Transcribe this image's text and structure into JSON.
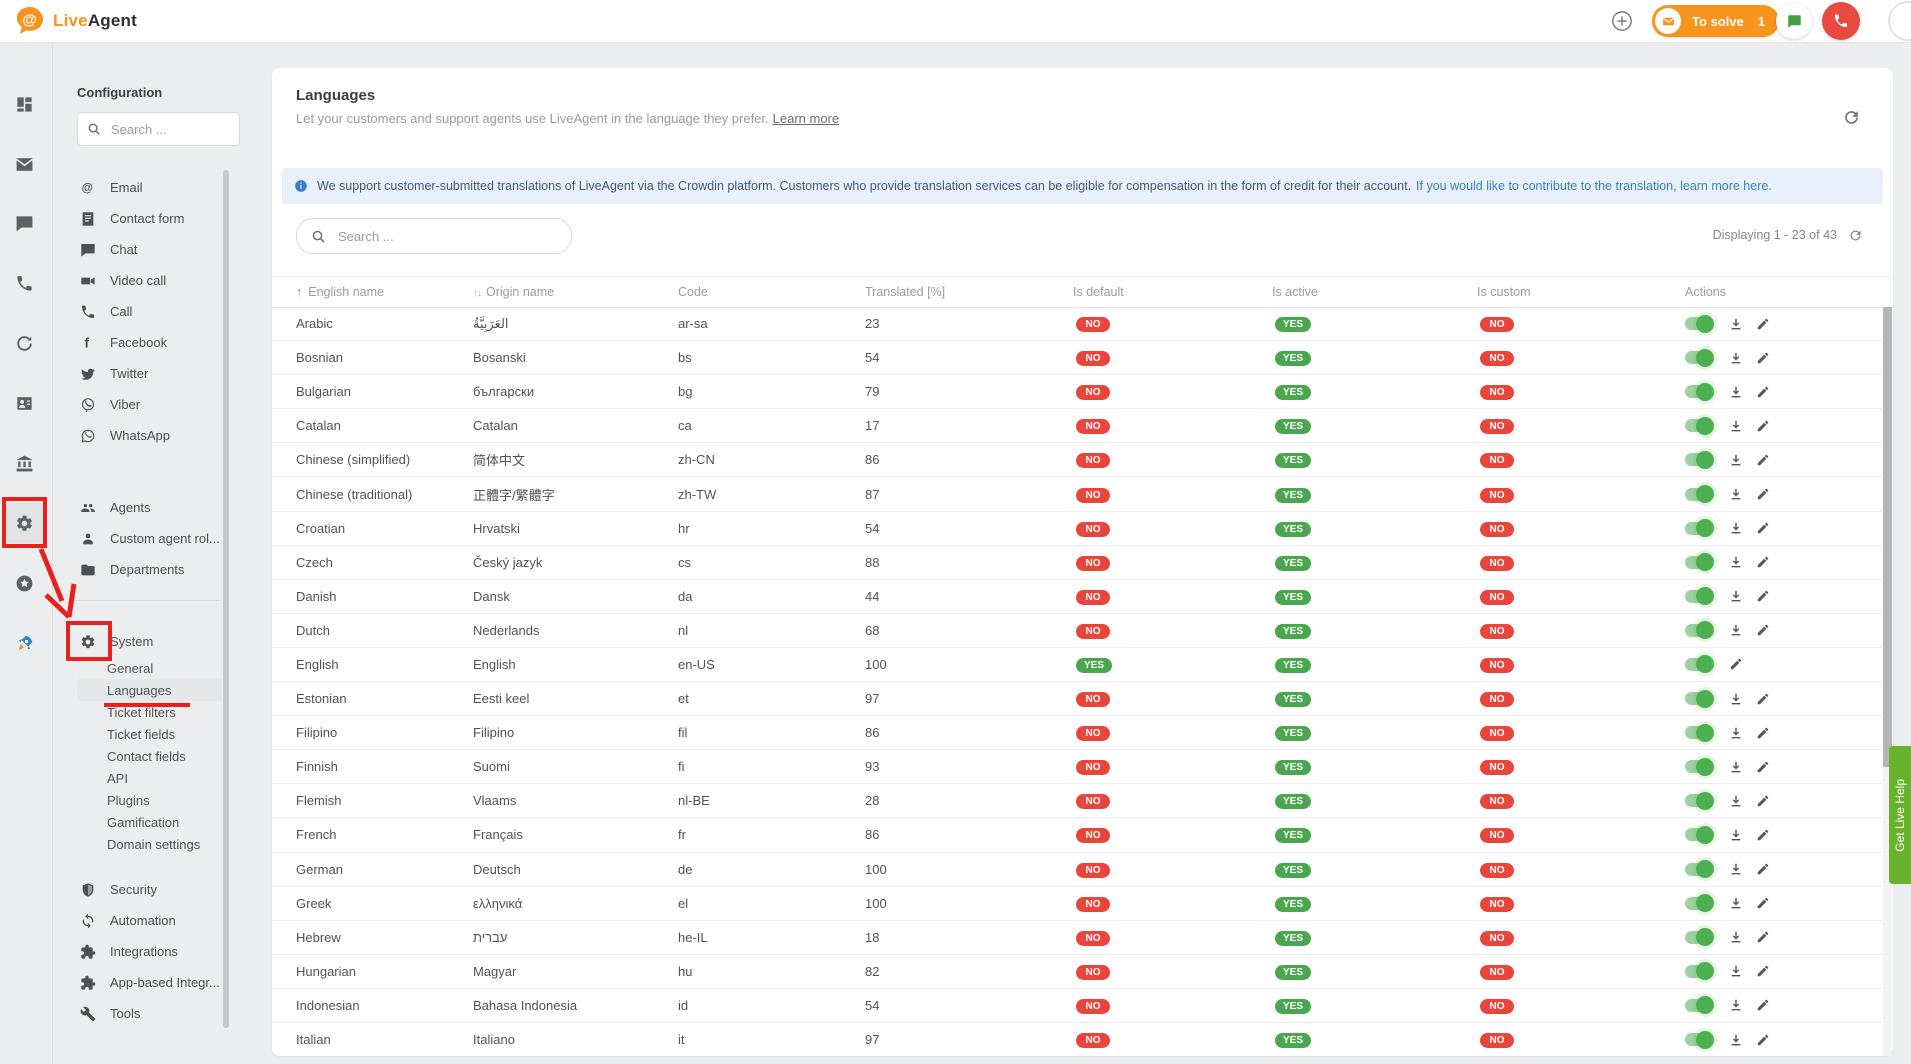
{
  "header": {
    "logo": {
      "live": "Live",
      "agent": "Agent"
    },
    "to_solve": {
      "label": "To solve",
      "count": "1"
    },
    "icons": [
      "plus-circle-icon",
      "envelope-icon",
      "chat-bubble-icon",
      "phone-icon"
    ]
  },
  "rail": {
    "items": [
      {
        "icon": "dashboard",
        "name": "dashboard"
      },
      {
        "icon": "email",
        "name": "email"
      },
      {
        "icon": "chat",
        "name": "chat"
      },
      {
        "icon": "call",
        "name": "calls"
      },
      {
        "icon": "time",
        "name": "time"
      },
      {
        "icon": "contacts",
        "name": "customers"
      },
      {
        "icon": "company",
        "name": "company"
      },
      {
        "icon": "gear",
        "name": "configuration",
        "active": true
      },
      {
        "icon": "badge",
        "name": "achievements"
      },
      {
        "icon": "rocket",
        "name": "getting-started"
      }
    ]
  },
  "sidebar": {
    "title": "Configuration",
    "search_placeholder": "Search ...",
    "channels": [
      {
        "icon": "at",
        "label": "Email"
      },
      {
        "icon": "form",
        "label": "Contact form"
      },
      {
        "icon": "chat",
        "label": "Chat"
      },
      {
        "icon": "video",
        "label": "Video call"
      },
      {
        "icon": "call",
        "label": "Call"
      },
      {
        "icon": "facebook",
        "label": "Facebook"
      },
      {
        "icon": "twitter",
        "label": "Twitter"
      },
      {
        "icon": "viber",
        "label": "Viber"
      },
      {
        "icon": "whatsapp",
        "label": "WhatsApp"
      }
    ],
    "people": [
      {
        "icon": "people",
        "label": "Agents"
      },
      {
        "icon": "person",
        "label": "Custom agent rol..."
      },
      {
        "icon": "folder",
        "label": "Departments"
      }
    ],
    "system": {
      "icon": "gear",
      "label": "System",
      "children": [
        "General",
        "Languages",
        "Ticket filters",
        "Ticket fields",
        "Contact fields",
        "API",
        "Plugins",
        "Gamification",
        "Domain settings"
      ],
      "active_child": "Languages"
    },
    "bottom": [
      {
        "icon": "shield",
        "label": "Security"
      },
      {
        "icon": "sync",
        "label": "Automation"
      },
      {
        "icon": "puzzle",
        "label": "Integrations"
      },
      {
        "icon": "puzzle",
        "label": "App-based Integr..."
      },
      {
        "icon": "wrench",
        "label": "Tools"
      }
    ]
  },
  "main": {
    "title": "Languages",
    "subtitle": "Let your customers and support agents use LiveAgent in the language they prefer.",
    "learn_more": "Learn more",
    "banner": {
      "text": "We support customer-submitted translations of LiveAgent via the Crowdin platform. Customers who provide translation services can be eligible for compensation in the form of credit for their account.",
      "link": "If you would like to contribute to the translation, learn more here."
    },
    "search_placeholder": "Search ...",
    "displaying": "Displaying 1 - 23 of 43",
    "table": {
      "columns": [
        {
          "label": "English name",
          "sort": "up"
        },
        {
          "label": "Origin name",
          "sort": "both"
        },
        {
          "label": "Code",
          "sort": null
        },
        {
          "label": "Translated [%]",
          "sort": null
        },
        {
          "label": "Is default",
          "sort": null
        },
        {
          "label": "Is active",
          "sort": null
        },
        {
          "label": "Is custom",
          "sort": null
        },
        {
          "label": "Actions",
          "sort": null
        }
      ],
      "rows": [
        {
          "english": "Arabic",
          "origin": "العَرَبِيَّةُ",
          "code": "ar-sa",
          "translated": "23",
          "is_default": "NO",
          "is_active": "YES",
          "is_custom": "NO",
          "toggle_on": true,
          "can_download": true
        },
        {
          "english": "Bosnian",
          "origin": "Bosanski",
          "code": "bs",
          "translated": "54",
          "is_default": "NO",
          "is_active": "YES",
          "is_custom": "NO",
          "toggle_on": true,
          "can_download": true
        },
        {
          "english": "Bulgarian",
          "origin": "български",
          "code": "bg",
          "translated": "79",
          "is_default": "NO",
          "is_active": "YES",
          "is_custom": "NO",
          "toggle_on": true,
          "can_download": true
        },
        {
          "english": "Catalan",
          "origin": "Catalan",
          "code": "ca",
          "translated": "17",
          "is_default": "NO",
          "is_active": "YES",
          "is_custom": "NO",
          "toggle_on": true,
          "can_download": true
        },
        {
          "english": "Chinese (simplified)",
          "origin": "简体中文",
          "code": "zh-CN",
          "translated": "86",
          "is_default": "NO",
          "is_active": "YES",
          "is_custom": "NO",
          "toggle_on": true,
          "can_download": true
        },
        {
          "english": "Chinese (traditional)",
          "origin": "正體字/繁體字",
          "code": "zh-TW",
          "translated": "87",
          "is_default": "NO",
          "is_active": "YES",
          "is_custom": "NO",
          "toggle_on": true,
          "can_download": true
        },
        {
          "english": "Croatian",
          "origin": "Hrvatski",
          "code": "hr",
          "translated": "54",
          "is_default": "NO",
          "is_active": "YES",
          "is_custom": "NO",
          "toggle_on": true,
          "can_download": true
        },
        {
          "english": "Czech",
          "origin": "Český jazyk",
          "code": "cs",
          "translated": "88",
          "is_default": "NO",
          "is_active": "YES",
          "is_custom": "NO",
          "toggle_on": true,
          "can_download": true
        },
        {
          "english": "Danish",
          "origin": "Dansk",
          "code": "da",
          "translated": "44",
          "is_default": "NO",
          "is_active": "YES",
          "is_custom": "NO",
          "toggle_on": true,
          "can_download": true
        },
        {
          "english": "Dutch",
          "origin": "Nederlands",
          "code": "nl",
          "translated": "68",
          "is_default": "NO",
          "is_active": "YES",
          "is_custom": "NO",
          "toggle_on": true,
          "can_download": true
        },
        {
          "english": "English",
          "origin": "English",
          "code": "en-US",
          "translated": "100",
          "is_default": "YES",
          "is_active": "YES",
          "is_custom": "NO",
          "toggle_on": true,
          "can_download": false
        },
        {
          "english": "Estonian",
          "origin": "Eesti keel",
          "code": "et",
          "translated": "97",
          "is_default": "NO",
          "is_active": "YES",
          "is_custom": "NO",
          "toggle_on": true,
          "can_download": true
        },
        {
          "english": "Filipino",
          "origin": "Filipino",
          "code": "fil",
          "translated": "86",
          "is_default": "NO",
          "is_active": "YES",
          "is_custom": "NO",
          "toggle_on": true,
          "can_download": true
        },
        {
          "english": "Finnish",
          "origin": "Suomi",
          "code": "fi",
          "translated": "93",
          "is_default": "NO",
          "is_active": "YES",
          "is_custom": "NO",
          "toggle_on": true,
          "can_download": true
        },
        {
          "english": "Flemish",
          "origin": "Vlaams",
          "code": "nl-BE",
          "translated": "28",
          "is_default": "NO",
          "is_active": "YES",
          "is_custom": "NO",
          "toggle_on": true,
          "can_download": true
        },
        {
          "english": "French",
          "origin": "Français",
          "code": "fr",
          "translated": "86",
          "is_default": "NO",
          "is_active": "YES",
          "is_custom": "NO",
          "toggle_on": true,
          "can_download": true
        },
        {
          "english": "German",
          "origin": "Deutsch",
          "code": "de",
          "translated": "100",
          "is_default": "NO",
          "is_active": "YES",
          "is_custom": "NO",
          "toggle_on": true,
          "can_download": true
        },
        {
          "english": "Greek",
          "origin": "ελληνικά",
          "code": "el",
          "translated": "100",
          "is_default": "NO",
          "is_active": "YES",
          "is_custom": "NO",
          "toggle_on": true,
          "can_download": true
        },
        {
          "english": "Hebrew",
          "origin": "עברית",
          "code": "he-IL",
          "translated": "18",
          "is_default": "NO",
          "is_active": "YES",
          "is_custom": "NO",
          "toggle_on": true,
          "can_download": true
        },
        {
          "english": "Hungarian",
          "origin": "Magyar",
          "code": "hu",
          "translated": "82",
          "is_default": "NO",
          "is_active": "YES",
          "is_custom": "NO",
          "toggle_on": true,
          "can_download": true
        },
        {
          "english": "Indonesian",
          "origin": "Bahasa Indonesia",
          "code": "id",
          "translated": "54",
          "is_default": "NO",
          "is_active": "YES",
          "is_custom": "NO",
          "toggle_on": true,
          "can_download": true
        },
        {
          "english": "Italian",
          "origin": "Italiano",
          "code": "it",
          "translated": "97",
          "is_default": "NO",
          "is_active": "YES",
          "is_custom": "NO",
          "toggle_on": true,
          "can_download": true
        }
      ]
    }
  },
  "help_tab": {
    "label": "Get Live Help"
  },
  "colors": {
    "brand_orange": "#f7941e",
    "badge_red": "#e8453c",
    "badge_green": "#4aa74f",
    "toggle_green": "#4caf50",
    "banner_bg": "#e8f1fb",
    "banner_link": "#3e7ec0",
    "help_green": "#68b32b",
    "annotation_red": "#e8201e",
    "page_bg": "#ecedef"
  }
}
